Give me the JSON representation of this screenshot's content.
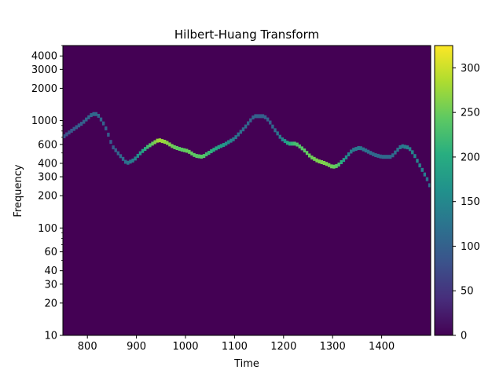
{
  "chart_data": {
    "type": "heatmap",
    "title": "Hilbert-Huang Transform",
    "xlabel": "Time",
    "ylabel": "Frequency",
    "xlim": [
      750,
      1500
    ],
    "ylim": [
      10,
      5000
    ],
    "yscale": "log",
    "x_ticks": [
      800,
      900,
      1000,
      1100,
      1200,
      1300,
      1400
    ],
    "y_ticks": [
      10,
      20,
      30,
      40,
      60,
      100,
      200,
      300,
      400,
      600,
      1000,
      2000,
      3000,
      4000
    ],
    "background_value": 0,
    "colormap": "viridis",
    "colorbar": {
      "range": [
        0,
        325
      ],
      "ticks": [
        0,
        50,
        100,
        150,
        200,
        250,
        300
      ]
    },
    "ridge": {
      "time": [
        750,
        770,
        790,
        810,
        820,
        835,
        850,
        865,
        880,
        895,
        910,
        925,
        945,
        960,
        975,
        990,
        1005,
        1020,
        1035,
        1050,
        1065,
        1080,
        1100,
        1120,
        1140,
        1160,
        1170,
        1180,
        1195,
        1210,
        1225,
        1240,
        1255,
        1270,
        1285,
        1300,
        1310,
        1325,
        1340,
        1355,
        1370,
        1385,
        1400,
        1420,
        1440,
        1455,
        1465,
        1475,
        1485,
        1495,
        1500
      ],
      "frequency": [
        700,
        820,
        950,
        1150,
        1150,
        900,
        580,
        480,
        400,
        430,
        510,
        580,
        660,
        630,
        570,
        540,
        520,
        470,
        460,
        510,
        560,
        600,
        680,
        850,
        1100,
        1100,
        1000,
        840,
        680,
        610,
        610,
        540,
        460,
        420,
        400,
        370,
        380,
        440,
        530,
        560,
        520,
        480,
        460,
        460,
        580,
        560,
        490,
        400,
        330,
        270,
        230
      ],
      "intensity": [
        80,
        90,
        100,
        110,
        110,
        100,
        90,
        110,
        120,
        140,
        180,
        230,
        280,
        270,
        250,
        240,
        250,
        240,
        240,
        210,
        190,
        170,
        130,
        110,
        100,
        100,
        100,
        110,
        140,
        200,
        230,
        240,
        250,
        260,
        260,
        250,
        240,
        170,
        130,
        130,
        120,
        110,
        110,
        110,
        130,
        140,
        150,
        150,
        140,
        120,
        110
      ]
    }
  }
}
